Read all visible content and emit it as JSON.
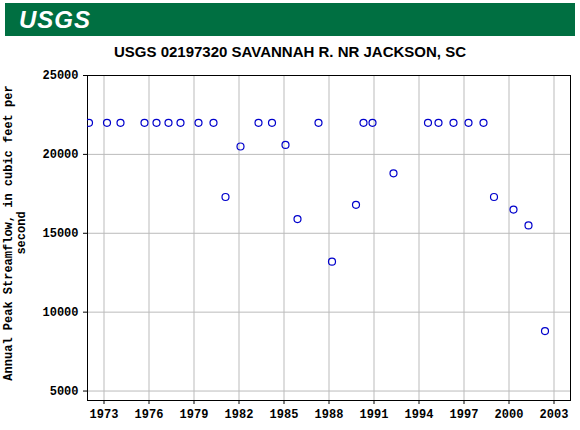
{
  "chart_data": {
    "type": "scatter",
    "logo": "USGS",
    "title": "USGS 02197320 SAVANNAH R. NR JACKSON, SC",
    "y_label": "Annual Peak Streamflow, in cubic feet per second",
    "x": [
      1972.0,
      1973.2,
      1974.1,
      1975.7,
      1976.5,
      1977.3,
      1978.1,
      1979.3,
      1980.3,
      1981.1,
      1982.1,
      1983.3,
      1984.2,
      1985.1,
      1985.9,
      1987.3,
      1988.2,
      1989.8,
      1990.3,
      1990.9,
      1992.3,
      1994.6,
      1995.3,
      1996.3,
      1997.3,
      1998.3,
      1999.0,
      2000.3,
      2001.3,
      2002.4
    ],
    "values": [
      22000,
      22000,
      22000,
      22000,
      22000,
      22000,
      22000,
      22000,
      22000,
      17300,
      20500,
      22000,
      22000,
      20600,
      15900,
      22000,
      13200,
      16800,
      22000,
      22000,
      18800,
      22000,
      22000,
      22000,
      22000,
      22000,
      17300,
      16500,
      15500,
      8800
    ],
    "color": "#0000cc",
    "marker": "open_circle",
    "xlim": [
      1971.9,
      2004.1
    ],
    "xticks": [
      1973,
      1976,
      1979,
      1982,
      1985,
      1988,
      1991,
      1994,
      1997,
      2000,
      2003
    ],
    "ylim": [
      4400,
      25000
    ],
    "yticks": [
      5000,
      10000,
      15000,
      20000,
      25000
    ],
    "grid": true
  }
}
